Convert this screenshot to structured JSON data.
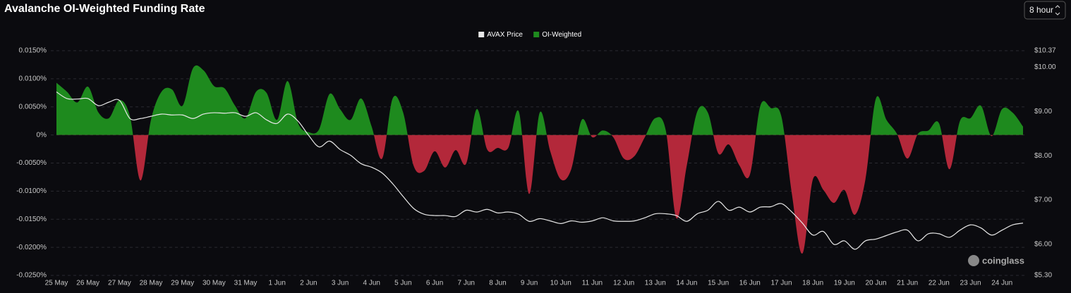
{
  "chart_data": {
    "type": "area",
    "title": "Avalanche OI-Weighted Funding Rate",
    "interval_selector": "8 hour",
    "watermark": "coinglass",
    "categories": [
      "25 May",
      null,
      null,
      "26 May",
      null,
      null,
      "27 May",
      null,
      null,
      "28 May",
      null,
      null,
      "29 May",
      null,
      null,
      "30 May",
      null,
      null,
      "31 May",
      null,
      null,
      "1 Jun",
      null,
      null,
      "2 Jun",
      null,
      null,
      "3 Jun",
      null,
      null,
      "4 Jun",
      null,
      null,
      "5 Jun",
      null,
      null,
      "6 Jun",
      null,
      null,
      "7 Jun",
      null,
      null,
      "8 Jun",
      null,
      null,
      "9 Jun",
      null,
      null,
      "10 Jun",
      null,
      null,
      "11 Jun",
      null,
      null,
      "12 Jun",
      null,
      null,
      "13 Jun",
      null,
      null,
      "14 Jun",
      null,
      null,
      "15 Jun",
      null,
      null,
      "16 Jun",
      null,
      null,
      "17 Jun",
      null,
      null,
      "18 Jun",
      null,
      null,
      "19 Jun",
      null,
      null,
      "20 Jun",
      null,
      null,
      "21 Jun",
      null,
      null,
      "22 Jun",
      null,
      null,
      "23 Jun",
      null,
      null,
      "24 Jun",
      null,
      null
    ],
    "series": [
      {
        "name": "AVAX Price",
        "type": "line",
        "axis": "y2",
        "color": "#e8e8e8",
        "values": [
          9.44,
          9.29,
          9.28,
          9.29,
          9.13,
          9.21,
          9.25,
          8.84,
          8.84,
          8.89,
          8.94,
          8.92,
          8.92,
          8.84,
          8.94,
          8.97,
          8.96,
          8.97,
          8.89,
          8.97,
          8.81,
          8.73,
          8.94,
          8.78,
          8.46,
          8.2,
          8.33,
          8.14,
          8.01,
          7.82,
          7.74,
          7.61,
          7.37,
          7.08,
          6.81,
          6.68,
          6.65,
          6.65,
          6.63,
          6.77,
          6.73,
          6.79,
          6.71,
          6.73,
          6.68,
          6.52,
          6.58,
          6.53,
          6.47,
          6.53,
          6.5,
          6.53,
          6.6,
          6.53,
          6.52,
          6.53,
          6.6,
          6.69,
          6.69,
          6.65,
          6.52,
          6.69,
          6.77,
          6.97,
          6.77,
          6.84,
          6.73,
          6.84,
          6.85,
          6.92,
          6.73,
          6.48,
          6.21,
          6.29,
          6.0,
          6.08,
          5.89,
          6.08,
          6.12,
          6.2,
          6.28,
          6.32,
          6.08,
          6.24,
          6.24,
          6.16,
          6.32,
          6.44,
          6.37,
          6.21,
          6.32,
          6.44,
          6.48
        ]
      },
      {
        "name": "OI-Weighted",
        "type": "area",
        "color": "#1e8a1e",
        "negative_color": "#b3283a",
        "values": [
          0.0093,
          0.0077,
          0.0058,
          0.0086,
          0.004,
          0.003,
          0.0062,
          0.0033,
          -0.0081,
          0.0027,
          0.0077,
          0.0081,
          0.0052,
          0.0119,
          0.0115,
          0.0087,
          0.0083,
          0.0052,
          0.003,
          0.0077,
          0.0075,
          0.0027,
          0.0096,
          0.0021,
          0.0005,
          0.001,
          0.0073,
          0.0046,
          0.0027,
          0.0065,
          0.0015,
          -0.0042,
          0.0065,
          0.004,
          -0.0055,
          -0.0064,
          -0.0029,
          -0.0058,
          -0.0027,
          -0.0051,
          0.0046,
          -0.0026,
          -0.0023,
          -0.0023,
          0.0042,
          -0.0105,
          0.004,
          -0.0029,
          -0.0079,
          -0.0061,
          0.0027,
          -0.0004,
          0.0008,
          -0.0004,
          -0.0042,
          -0.0038,
          -0.0004,
          0.003,
          0.0008,
          -0.0148,
          -0.0054,
          0.0042,
          0.004,
          -0.0033,
          -0.0017,
          -0.0054,
          -0.0071,
          0.0052,
          0.0048,
          0.0033,
          -0.0105,
          -0.0211,
          -0.0079,
          -0.0098,
          -0.0121,
          -0.0098,
          -0.0142,
          -0.0079,
          0.0065,
          0.0027,
          0.0002,
          -0.0042,
          0.0002,
          0.0008,
          0.0021,
          -0.0061,
          0.0025,
          0.003,
          0.0052,
          -0.0002,
          0.0046,
          0.004,
          0.0015
        ]
      }
    ],
    "ylim": [
      -0.025,
      0.015
    ],
    "yticks": [
      {
        "value": 0.015,
        "label": "0.0150%"
      },
      {
        "value": 0.01,
        "label": "0.0100%"
      },
      {
        "value": 0.005,
        "label": "0.0050%"
      },
      {
        "value": 0,
        "label": "0%"
      },
      {
        "value": -0.005,
        "label": "-0.0050%"
      },
      {
        "value": -0.01,
        "label": "-0.0100%"
      },
      {
        "value": -0.015,
        "label": "-0.0150%"
      },
      {
        "value": -0.02,
        "label": "-0.0200%"
      },
      {
        "value": -0.025,
        "label": "-0.0250%"
      }
    ],
    "y2lim": [
      5.3,
      10.37
    ],
    "y2ticks": [
      {
        "value": 10.37,
        "label": "$10.37"
      },
      {
        "value": 10,
        "label": "$10.00"
      },
      {
        "value": 9,
        "label": "$9.00"
      },
      {
        "value": 8,
        "label": "$8.00"
      },
      {
        "value": 7,
        "label": "$7.00"
      },
      {
        "value": 6,
        "label": "$6.00"
      },
      {
        "value": 5.3,
        "label": "$5.30"
      }
    ],
    "grid": true,
    "legend": "top"
  }
}
